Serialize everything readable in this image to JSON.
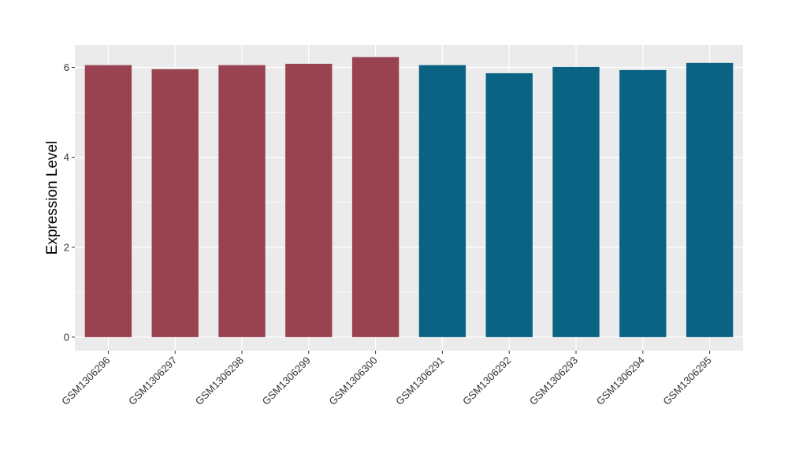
{
  "chart_data": {
    "type": "bar",
    "title": "",
    "xlabel": "",
    "ylabel": "Expression Level",
    "ylim": [
      -0.3,
      6.5
    ],
    "yticks": [
      0,
      2,
      4,
      6
    ],
    "grid": true,
    "categories": [
      "GSM1306296",
      "GSM1306297",
      "GSM1306298",
      "GSM1306299",
      "GSM1306300",
      "GSM1306291",
      "GSM1306292",
      "GSM1306293",
      "GSM1306294",
      "GSM1306295"
    ],
    "values": [
      6.05,
      5.96,
      6.05,
      6.08,
      6.23,
      6.05,
      5.87,
      6.01,
      5.94,
      6.1
    ],
    "colors": [
      "#9a4350",
      "#9a4350",
      "#9a4350",
      "#9a4350",
      "#9a4350",
      "#0b6384",
      "#0b6384",
      "#0b6384",
      "#0b6384",
      "#0b6384"
    ],
    "panel_background": "#ebebeb",
    "gridline_color": "#ffffff"
  }
}
